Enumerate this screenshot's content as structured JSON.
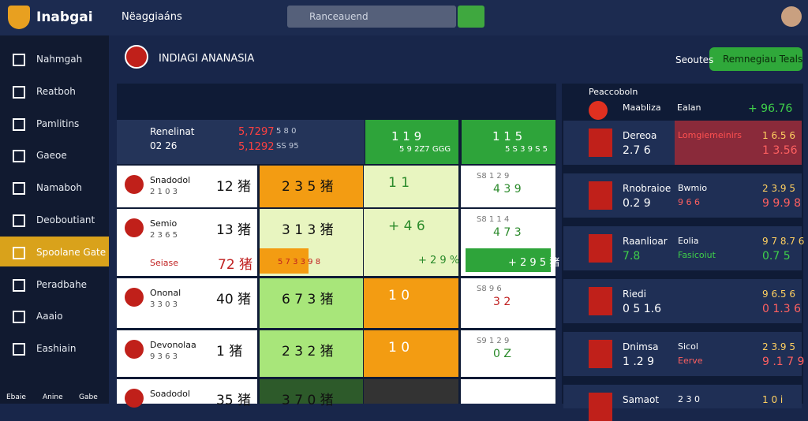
{
  "header": {
    "logo": "Inabgai",
    "nav": "Nëaggiaáns",
    "search": "Ranceauend"
  },
  "sidebar": {
    "items": [
      "Nahmgah",
      "Reatboh",
      "Pamlitins",
      "Gaeoe",
      "Namaboh",
      "Deoboutiant",
      "Spoolane Gate",
      "Peradbahe",
      "Aaaio",
      "Eashiain"
    ],
    "active": 6,
    "footer": [
      "Ebaie",
      "Anine",
      "Gabe"
    ]
  },
  "main": {
    "title": "INDIAGI ANANASIA",
    "search": "Seoutes",
    "button": "Remnegiau Teals"
  },
  "table": {
    "top": {
      "name": "Renelinat",
      "sub": "02 26",
      "odds": [
        "5,7297",
        "5,1292"
      ],
      "odds_sub": [
        "5 8 0",
        "SS 95"
      ],
      "c2": "1 1 9",
      "c2sub": "5 9 2Z7 GGG",
      "c3": "1 1 5",
      "c3sub": "5 S 3 9 S 5"
    },
    "rows": [
      {
        "name": "Snadodol",
        "sub": "2 1 0 3",
        "score": "12 猪",
        "c2": "2 3 5 猪",
        "c3": "1 1",
        "c4a": "S8 1 2 9",
        "c4b": "4 3 9"
      },
      {
        "name": "Semio",
        "sub": "2 3 6 5",
        "score": "13 猪",
        "c2": "3 1 3 猪",
        "c3": "+ 4 6",
        "c4a": "S8 1 1 4",
        "c4b": "4 7 3",
        "name2": "Seiase",
        "score2": "72 猪",
        "c2b": "5 7 3 3 9 8",
        "c3b": "+ 2 9 %",
        "c4c": "+ 2 9 5 猪"
      },
      {
        "name": "Ononal",
        "sub": "3 3 0 3",
        "score": "40 猪",
        "c2": "6 7 3 猪",
        "c3": "1 0",
        "c4a": "S8 9 6",
        "c4b": "3 2"
      },
      {
        "name": "Devonolaa",
        "sub": "9 3 6 3",
        "score": "1 猪",
        "c2": "2 3 2 猪",
        "c3": "1 0",
        "c4a": "S9 1 2 9",
        "c4b": "0 Z"
      },
      {
        "name": "Soadodol",
        "score": "35 猪",
        "c2": "3 7 0 猪"
      }
    ]
  },
  "side": {
    "title": "Peaccoboln",
    "head": [
      "Maabliza",
      "Ealan",
      "+ 96.76"
    ],
    "rows": [
      {
        "name": "Dereoa",
        "sub": "2.7 6",
        "mid": "Lomgiemeinirs",
        "v1": "1 6.5 6",
        "v2": "1 3.56"
      },
      {
        "name": "Rnobraioe",
        "sub": "0.2 9",
        "mid": "Bwmio",
        "mid2": "9 6 6",
        "v1": "2 3.9 5",
        "v2": "9 9.9 8"
      },
      {
        "name": "Raanlioar",
        "sub": "7.8",
        "mid": "Eolia",
        "mid2": "Fasicoiut",
        "v1": "9 7 8.7 6",
        "v2": "0.7 5"
      },
      {
        "name": "Riedi",
        "sub": "0 5 1.6",
        "v1": "9 6.5 6",
        "v2": "0 1.3 6"
      },
      {
        "name": "Dnimsa",
        "sub": "1 .2 9",
        "mid": "Sicol",
        "mid2": "Eerve",
        "v1": "2 3.9 5",
        "v2": "9 .1 7 9"
      },
      {
        "name": "Samaot",
        "mid": "2 3 0",
        "v1": "1 0 i"
      }
    ]
  }
}
